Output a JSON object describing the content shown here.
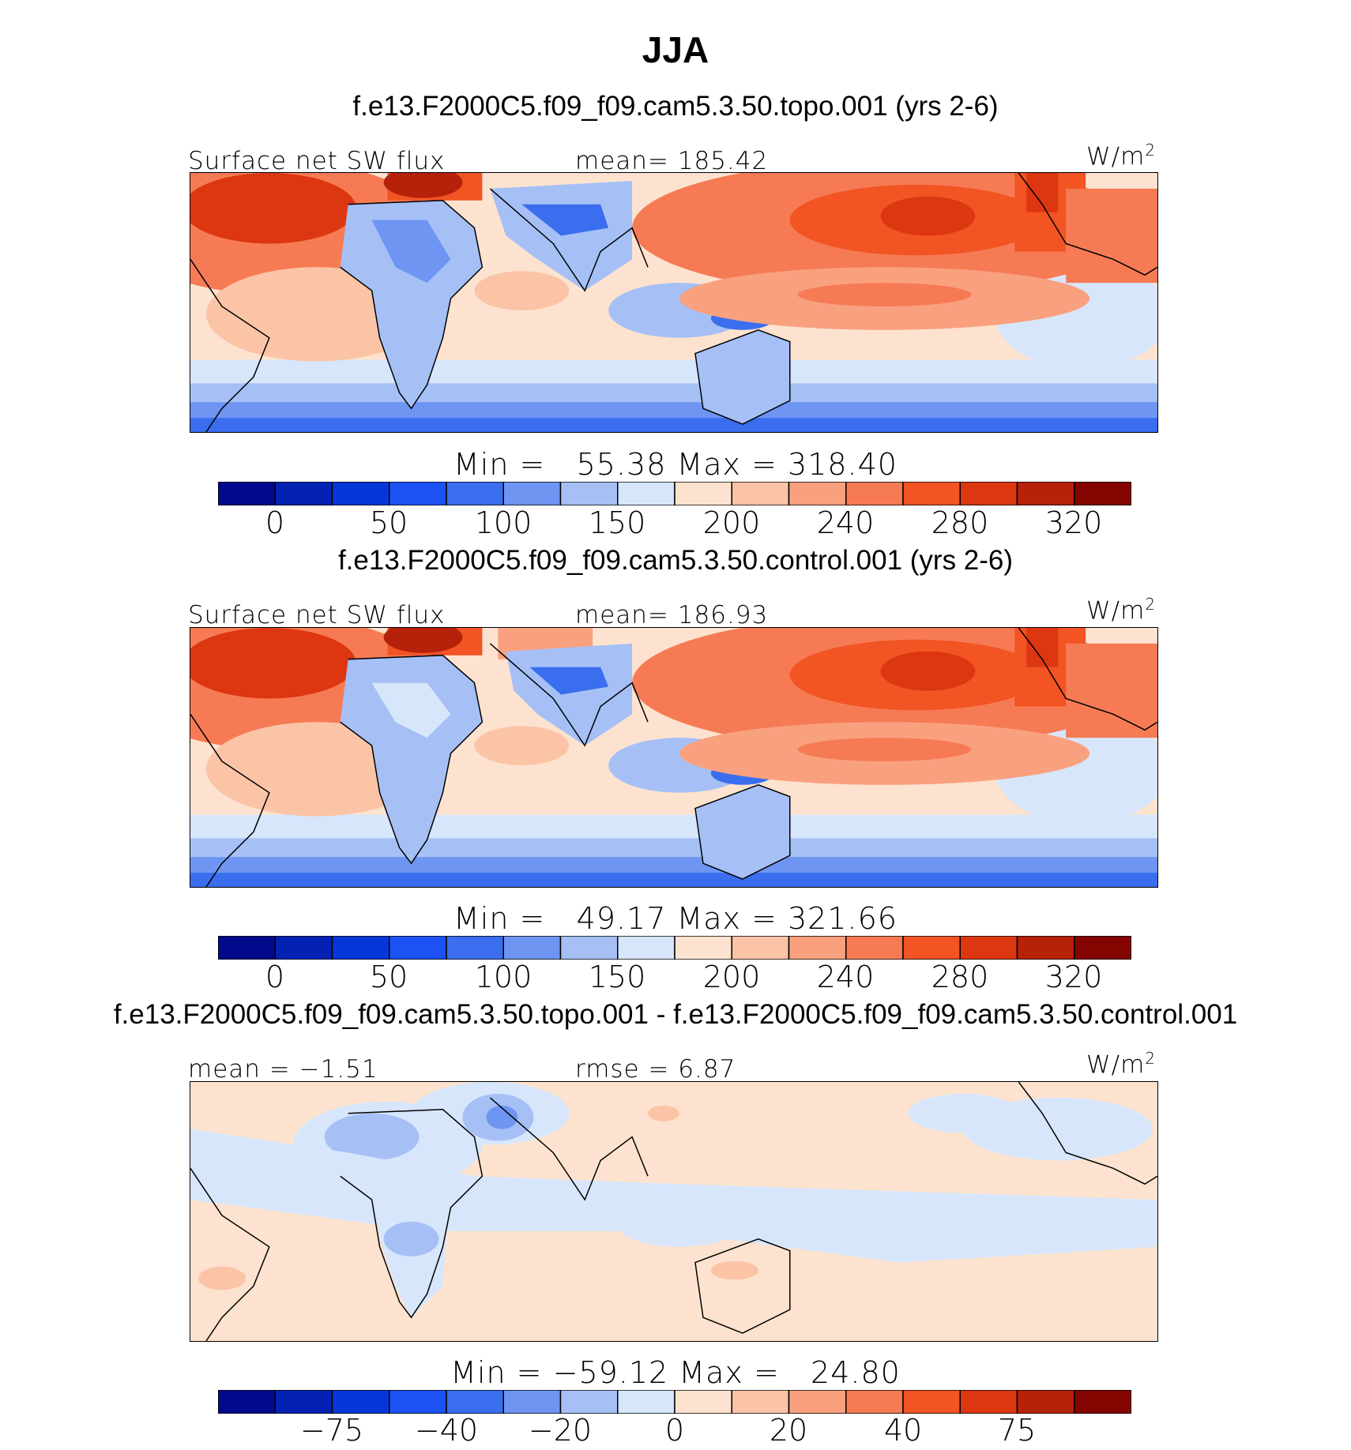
{
  "season": "JJA",
  "units_label": "W/m",
  "units_exp": "2",
  "panels": [
    {
      "case": "f.e13.F2000C5.f09_f09.cam5.3.50.topo.001 (yrs 2-6)",
      "left": "Surface net SW flux",
      "center": "mean= 185.42",
      "minmax": "Min =   55.38 Max = 318.40"
    },
    {
      "case": "f.e13.F2000C5.f09_f09.cam5.3.50.control.001 (yrs 2-6)",
      "left": "Surface net SW flux",
      "center": "mean= 186.93",
      "minmax": "Min =   49.17 Max = 321.66"
    },
    {
      "case": "f.e13.F2000C5.f09_f09.cam5.3.50.topo.001 - f.e13.F2000C5.f09_f09.cam5.3.50.control.001",
      "left": "mean =  −1.51",
      "center": "rmse =    6.87",
      "minmax": "Min = −59.12 Max =   24.80"
    }
  ],
  "chart_data": [
    {
      "type": "heatmap",
      "title": "f.e13.F2000C5.f09_f09.cam5.3.50.topo.001 (yrs 2-6)",
      "variable": "Surface net SW flux",
      "mean": 185.42,
      "min": 55.38,
      "max": 318.4,
      "units": "W/m2",
      "colorbar_ticks": [
        "0",
        "50",
        "100",
        "150",
        "200",
        "240",
        "280",
        "320"
      ],
      "colorbar_colors": [
        "#000a8b",
        "#0322b4",
        "#0637d8",
        "#1d53f5",
        "#3a6eee",
        "#6e95f2",
        "#a6c0f6",
        "#d7e6fb",
        "#fde3cf",
        "#fbc4a6",
        "#f9a07f",
        "#f67b55",
        "#f25424",
        "#dc3711",
        "#b6210a",
        "#840402"
      ]
    },
    {
      "type": "heatmap",
      "title": "f.e13.F2000C5.f09_f09.cam5.3.50.control.001 (yrs 2-6)",
      "variable": "Surface net SW flux",
      "mean": 186.93,
      "min": 49.17,
      "max": 321.66,
      "units": "W/m2",
      "colorbar_ticks": [
        "0",
        "50",
        "100",
        "150",
        "200",
        "240",
        "280",
        "320"
      ],
      "colorbar_colors": [
        "#000a8b",
        "#0322b4",
        "#0637d8",
        "#1d53f5",
        "#3a6eee",
        "#6e95f2",
        "#a6c0f6",
        "#d7e6fb",
        "#fde3cf",
        "#fbc4a6",
        "#f9a07f",
        "#f67b55",
        "#f25424",
        "#dc3711",
        "#b6210a",
        "#840402"
      ]
    },
    {
      "type": "heatmap",
      "title": "f.e13.F2000C5.f09_f09.cam5.3.50.topo.001 - f.e13.F2000C5.f09_f09.cam5.3.50.control.001",
      "mean": -1.51,
      "rmse": 6.87,
      "min": -59.12,
      "max": 24.8,
      "units": "W/m2",
      "colorbar_ticks": [
        "−75",
        "−40",
        "−20",
        "0",
        "20",
        "40",
        "75"
      ],
      "colorbar_colors": [
        "#000a8b",
        "#0322b4",
        "#0637d8",
        "#1d53f5",
        "#3a6eee",
        "#6e95f2",
        "#a6c0f6",
        "#d7e6fb",
        "#fde3cf",
        "#fbc4a6",
        "#f9a07f",
        "#f67b55",
        "#f25424",
        "#dc3711",
        "#b6210a",
        "#840402"
      ]
    }
  ]
}
